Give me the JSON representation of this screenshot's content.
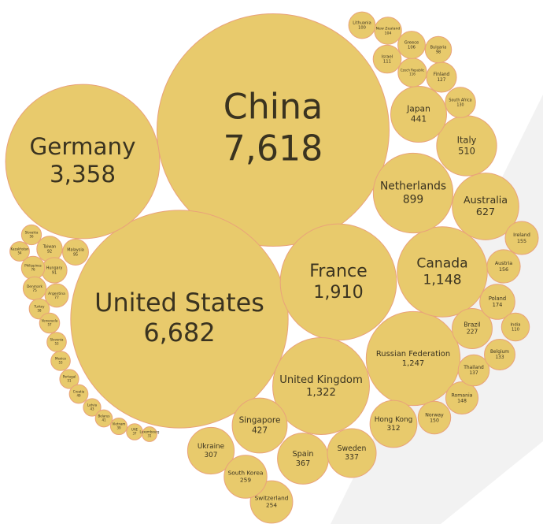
{
  "chart_data": {
    "type": "packed-bubble",
    "color": "#e8ca6c",
    "stroke": "#e9a27a",
    "categories": [
      "China",
      "United States",
      "Germany",
      "France",
      "Russian Federation",
      "United Kingdom",
      "Canada",
      "Netherlands",
      "Australia",
      "Italy",
      "Japan",
      "Singapore",
      "Spain",
      "Sweden",
      "Hong Kong",
      "Ukraine",
      "Switzerland",
      "South Korea",
      "Brazil",
      "Austria",
      "Ireland",
      "Poland",
      "Romania",
      "Norway",
      "Thailand",
      "Belgium",
      "South Africa",
      "Finland",
      "Czech Republic",
      "India",
      "Greece",
      "New Zealand",
      "Lithuania",
      "Israel",
      "Bulgaria",
      "Malaysia",
      "Taiwan",
      "Hungary",
      "Argentina",
      "Philippines",
      "Denmark",
      "Turkey",
      "Venezuela",
      "Slovakia",
      "Kazakhstan",
      "Slovenia",
      "Mexico",
      "Portugal",
      "Croatia",
      "Latvia",
      "Belarus",
      "Vietnam",
      "UAE",
      "Luxembourg"
    ],
    "values": [
      7618,
      6682,
      3358,
      1910,
      1247,
      1322,
      1148,
      899,
      627,
      510,
      441,
      427,
      367,
      337,
      312,
      307,
      254,
      259,
      227,
      156,
      155,
      174,
      148,
      150,
      137,
      133,
      130,
      127,
      116,
      110,
      106,
      104,
      100,
      111,
      98,
      95,
      92,
      91,
      77,
      76,
      75,
      58,
      57,
      56,
      54,
      53,
      53,
      51,
      49,
      43,
      41,
      39,
      37,
      31
    ],
    "value_labels": [
      "7,618",
      "6,682",
      "3,358",
      "1,910",
      "1,247",
      "1,322",
      "1,148",
      "899",
      "627",
      "510",
      "441",
      "427",
      "367",
      "337",
      "312",
      "307",
      "254",
      "259",
      "227",
      "156",
      "155",
      "174",
      "148",
      "150",
      "137",
      "133",
      "130",
      "127",
      "116",
      "110",
      "106",
      "104",
      "100",
      "111",
      "98",
      "95",
      "92",
      "91",
      "77",
      "76",
      "75",
      "58",
      "57",
      "56",
      "54",
      "53",
      "53",
      "51",
      "49",
      "43",
      "41",
      "39",
      "37",
      "31"
    ]
  }
}
